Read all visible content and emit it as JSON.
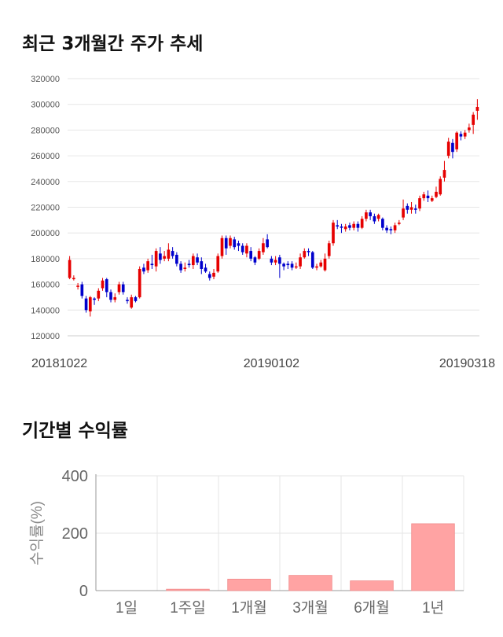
{
  "headings": {
    "price_trend": "최근 3개월간 주가 추세",
    "returns": "기간별 수익률"
  },
  "colors": {
    "up": "#e60000",
    "down": "#0000cc",
    "bar": "#ffa3a3",
    "bar_border": "#f08a8a"
  },
  "chart_data": [
    {
      "type": "candlestick",
      "title": "최근 3개월간 주가 추세",
      "ylim": [
        120000,
        320000
      ],
      "yticks": [
        120000,
        140000,
        160000,
        180000,
        200000,
        220000,
        240000,
        260000,
        280000,
        300000,
        320000
      ],
      "x_labels": [
        {
          "index": 0,
          "label": "20181022"
        },
        {
          "index": 49,
          "label": "20190102"
        },
        {
          "index": 99,
          "label": "20190318"
        }
      ],
      "grid": true,
      "candles": [
        [
          165000,
          179000,
          164000,
          182000
        ],
        [
          164000,
          165000,
          163000,
          167000
        ],
        [
          158000,
          159000,
          156000,
          161000
        ],
        [
          160000,
          151000,
          149000,
          162000
        ],
        [
          149000,
          140000,
          138000,
          151000
        ],
        [
          139000,
          150000,
          135000,
          151000
        ],
        [
          149000,
          148000,
          144000,
          150000
        ],
        [
          149000,
          155000,
          147000,
          157000
        ],
        [
          157000,
          163000,
          155000,
          165000
        ],
        [
          164000,
          154000,
          150000,
          165000
        ],
        [
          154000,
          148000,
          146000,
          156000
        ],
        [
          148000,
          150000,
          146000,
          153000
        ],
        [
          154000,
          160000,
          152000,
          162000
        ],
        [
          160000,
          154000,
          152000,
          162000
        ],
        [
          148000,
          147000,
          145000,
          150000
        ],
        [
          142000,
          150000,
          141000,
          152000
        ],
        [
          150000,
          147000,
          146000,
          151000
        ],
        [
          150000,
          172000,
          149000,
          174000
        ],
        [
          173000,
          170000,
          168000,
          176000
        ],
        [
          171000,
          178000,
          169000,
          180000
        ],
        [
          176000,
          175000,
          172000,
          183000
        ],
        [
          174000,
          186000,
          170000,
          188000
        ],
        [
          184000,
          179000,
          176000,
          189000
        ],
        [
          180000,
          182000,
          178000,
          186000
        ],
        [
          180000,
          187000,
          178000,
          192000
        ],
        [
          186000,
          182000,
          180000,
          189000
        ],
        [
          183000,
          176000,
          174000,
          185000
        ],
        [
          176000,
          171000,
          169000,
          178000
        ],
        [
          172000,
          173000,
          170000,
          177000
        ],
        [
          176000,
          175000,
          173000,
          179000
        ],
        [
          175000,
          182000,
          172000,
          184000
        ],
        [
          181000,
          177000,
          175000,
          184000
        ],
        [
          178000,
          172000,
          168000,
          181000
        ],
        [
          173000,
          170000,
          169000,
          176000
        ],
        [
          168000,
          165000,
          163000,
          170000
        ],
        [
          166000,
          169000,
          164000,
          172000
        ],
        [
          170000,
          182000,
          169000,
          184000
        ],
        [
          182000,
          196000,
          180000,
          198000
        ],
        [
          196000,
          188000,
          183000,
          198000
        ],
        [
          190000,
          196000,
          188000,
          198000
        ],
        [
          195000,
          189000,
          187000,
          197000
        ],
        [
          192000,
          190000,
          186000,
          194000
        ],
        [
          190000,
          185000,
          183000,
          192000
        ],
        [
          184000,
          190000,
          181000,
          192000
        ],
        [
          186000,
          180000,
          178000,
          189000
        ],
        [
          181000,
          177000,
          175000,
          182000
        ],
        [
          180000,
          186000,
          179000,
          188000
        ],
        [
          185000,
          192000,
          183000,
          196000
        ],
        [
          195000,
          189000,
          188000,
          199000
        ],
        [
          180000,
          177000,
          175000,
          182000
        ],
        [
          177000,
          179000,
          175000,
          182000
        ],
        [
          181000,
          176000,
          165000,
          183000
        ],
        [
          176000,
          174000,
          171000,
          177000
        ],
        [
          176000,
          175000,
          172000,
          178000
        ],
        [
          176000,
          173000,
          171000,
          178000
        ],
        [
          174000,
          174000,
          172000,
          177000
        ],
        [
          174000,
          181000,
          172000,
          184000
        ],
        [
          181000,
          186000,
          180000,
          188000
        ],
        [
          186000,
          185000,
          182000,
          188000
        ],
        [
          185000,
          173000,
          172000,
          186000
        ],
        [
          173000,
          174000,
          171000,
          176000
        ],
        [
          174000,
          177000,
          173000,
          179000
        ],
        [
          171000,
          180000,
          170000,
          184000
        ],
        [
          182000,
          192000,
          180000,
          194000
        ],
        [
          192000,
          208000,
          190000,
          210000
        ],
        [
          206000,
          205000,
          203000,
          210000
        ],
        [
          205000,
          204000,
          200000,
          207000
        ],
        [
          203000,
          205000,
          201000,
          207000
        ],
        [
          206000,
          204000,
          202000,
          208000
        ],
        [
          204000,
          207000,
          202000,
          209000
        ],
        [
          207000,
          204000,
          201000,
          209000
        ],
        [
          204000,
          211000,
          203000,
          213000
        ],
        [
          211000,
          216000,
          209000,
          218000
        ],
        [
          216000,
          213000,
          210000,
          218000
        ],
        [
          213000,
          209000,
          207000,
          215000
        ],
        [
          211000,
          214000,
          209000,
          215000
        ],
        [
          211000,
          204000,
          202000,
          212000
        ],
        [
          204000,
          202000,
          200000,
          206000
        ],
        [
          203000,
          202000,
          199000,
          205000
        ],
        [
          202000,
          206000,
          200000,
          208000
        ],
        [
          207000,
          208000,
          206000,
          210000
        ],
        [
          212000,
          219000,
          210000,
          226000
        ],
        [
          221000,
          218000,
          215000,
          223000
        ],
        [
          218000,
          220000,
          215000,
          224000
        ],
        [
          219000,
          218000,
          215000,
          222000
        ],
        [
          219000,
          227000,
          217000,
          229000
        ],
        [
          227000,
          230000,
          225000,
          232000
        ],
        [
          229000,
          227000,
          224000,
          233000
        ],
        [
          225000,
          227000,
          224000,
          229000
        ],
        [
          228000,
          232000,
          227000,
          236000
        ],
        [
          230000,
          242000,
          229000,
          244000
        ],
        [
          243000,
          249000,
          240000,
          256000
        ],
        [
          260000,
          271000,
          258000,
          274000
        ],
        [
          270000,
          263000,
          258000,
          273000
        ],
        [
          265000,
          278000,
          263000,
          279000
        ],
        [
          277000,
          275000,
          272000,
          279000
        ],
        [
          275000,
          278000,
          273000,
          280000
        ],
        [
          280000,
          282000,
          278000,
          285000
        ],
        [
          284000,
          292000,
          277000,
          294000
        ],
        [
          295000,
          298000,
          288000,
          304000
        ]
      ]
    },
    {
      "type": "bar",
      "categories": [
        "1일",
        "1주일",
        "1개월",
        "3개월",
        "6개월",
        "1년"
      ],
      "values": [
        0,
        5,
        40,
        53,
        34,
        233
      ],
      "ylabel": "수익률(%)",
      "ylim": [
        0,
        400
      ],
      "yticks": [
        0,
        200,
        400
      ],
      "grid": true
    }
  ]
}
